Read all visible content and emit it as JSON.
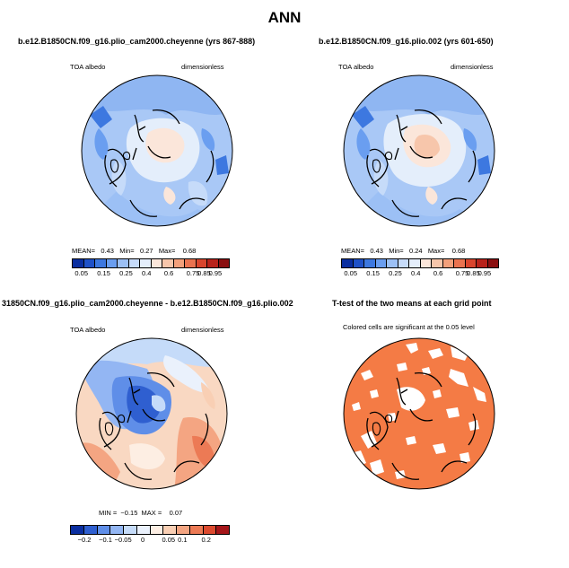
{
  "title": "ANN",
  "panels": [
    {
      "title": "b.e12.B1850CN.f09_g16.plio_cam2000.cheyenne (yrs 867-888)",
      "left_label": "TOA albedo",
      "right_label": "dimensionless",
      "stats": {
        "mean_label": "MEAN=",
        "mean": "0.43",
        "min_label": "Min=",
        "min": "0.27",
        "max_label": "Max=",
        "max": "0.68"
      },
      "colorbar_ticks": [
        "0.05",
        "0.15",
        "0.25",
        "0.4",
        "0.6",
        "0.75",
        "0.85",
        "0.95"
      ]
    },
    {
      "title": "b.e12.B1850CN.f09_g16.plio.002 (yrs 601-650)",
      "left_label": "TOA albedo",
      "right_label": "dimensionless",
      "stats": {
        "mean_label": "MEAN=",
        "mean": "0.43",
        "min_label": "Min=",
        "min": "0.24",
        "max_label": "Max=",
        "max": "0.68"
      },
      "colorbar_ticks": [
        "0.05",
        "0.15",
        "0.25",
        "0.4",
        "0.6",
        "0.75",
        "0.85",
        "0.95"
      ]
    },
    {
      "title": "31850CN.f09_g16.plio_cam2000.cheyenne - b.e12.B1850CN.f09_g16.plio.002",
      "left_label": "TOA albedo",
      "right_label": "dimensionless",
      "stats": {
        "min_label": "MIN =",
        "min": "−0.15",
        "max_label": "MAX =",
        "max": "0.07"
      },
      "colorbar_ticks": [
        "−0.2",
        "−0.1",
        "−0.05",
        "0",
        "0.05",
        "0.1",
        "0.2"
      ]
    },
    {
      "title": "T-test of the two means at each grid point",
      "note": "Colored cells are significant at the 0.05 level"
    }
  ],
  "colors": {
    "albedo_scale": [
      "#0a2ea0",
      "#1f51c8",
      "#3d78e0",
      "#6a9ef0",
      "#9cc0f5",
      "#c6dbf9",
      "#e4eefb",
      "#fbe6da",
      "#f7c6ab",
      "#f3a07b",
      "#ea7350",
      "#d9452d",
      "#b8221a",
      "#8a0f10"
    ],
    "diff_scale": [
      "#0a2ea0",
      "#2f5fd0",
      "#5f8ee8",
      "#93b6f3",
      "#c5dbf9",
      "#eaf1fc",
      "#fdeee3",
      "#f9cfb4",
      "#f4a582",
      "#ec7a55",
      "#dc4a2f",
      "#a5161a"
    ],
    "ttest_fill": "#f47b45",
    "ocean_panel1": "#a9c8f6",
    "ocean_panel2": "#a9c8f6",
    "ocean_diff": "#f9d8c2"
  }
}
